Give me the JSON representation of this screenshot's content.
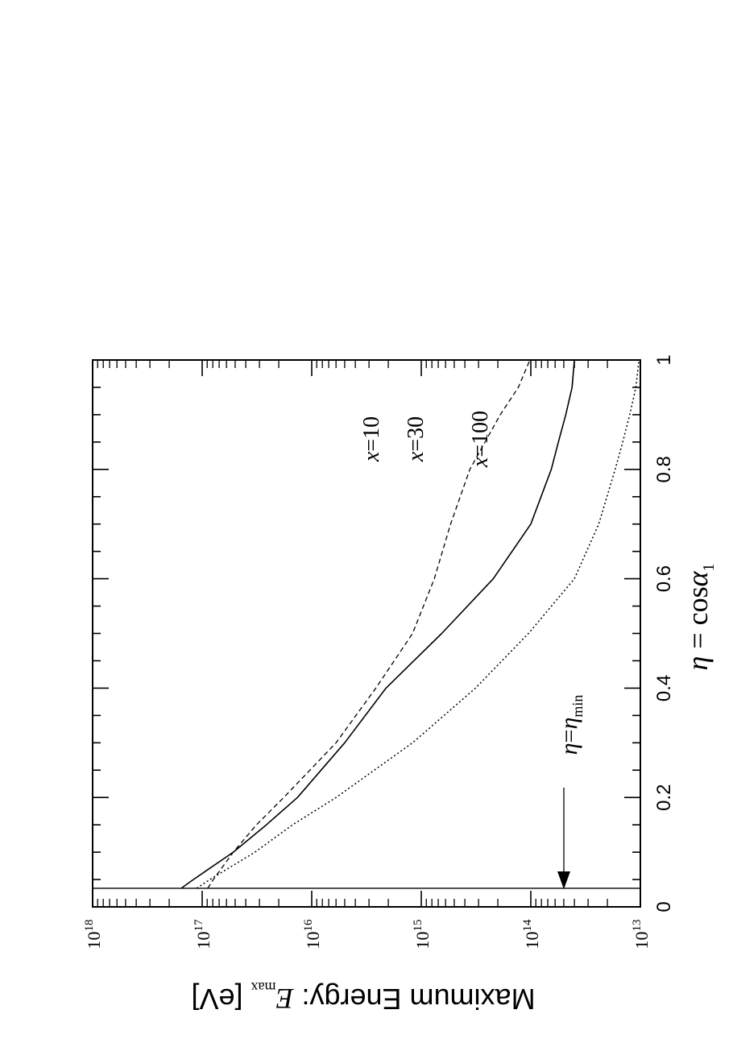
{
  "chart_data": {
    "type": "line",
    "orientation": "rotated-90",
    "xlabel": {
      "symbol": "η",
      "eq": " = cos",
      "alpha": "α",
      "sub": "1"
    },
    "ylabel": {
      "text": "Maximum Energy: ",
      "E": "E",
      "sub": "max",
      "unit": " [eV]"
    },
    "xlim": [
      0,
      1
    ],
    "ylim_log10": [
      13,
      18
    ],
    "y_scale": "log",
    "x_ticks": [
      "0",
      "0.2",
      "0.4",
      "0.6",
      "0.8",
      "1"
    ],
    "y_ticks": [
      {
        "base": "10",
        "exp": "13"
      },
      {
        "base": "10",
        "exp": "14"
      },
      {
        "base": "10",
        "exp": "15"
      },
      {
        "base": "10",
        "exp": "16"
      },
      {
        "base": "10",
        "exp": "17"
      },
      {
        "base": "10",
        "exp": "18"
      }
    ],
    "eta_min": 0.034,
    "eta_min_label": {
      "eta": "η",
      "eq": "=",
      "eta2": "η",
      "sub": "min"
    },
    "series": [
      {
        "name": "x=10",
        "label_x": "x",
        "label_rest": "=10",
        "style": "dashed",
        "x": [
          0.034,
          0.05,
          0.1,
          0.15,
          0.2,
          0.3,
          0.4,
          0.5,
          0.6,
          0.7,
          0.8,
          0.9,
          0.95,
          1.0
        ],
        "y": [
          8.9e+16,
          7.9e+16,
          5.2e+16,
          3.2e+16,
          1.8e+16,
          6000000000000000.0,
          2600000000000000.0,
          1200000000000000.0,
          760000000000000.0,
          540000000000000.0,
          360000000000000.0,
          190000000000000.0,
          130000000000000.0,
          102000000000000.0
        ]
      },
      {
        "name": "x=30",
        "label_x": "x",
        "label_rest": "=30",
        "style": "solid",
        "x": [
          0.034,
          0.05,
          0.1,
          0.15,
          0.2,
          0.3,
          0.4,
          0.5,
          0.6,
          0.7,
          0.8,
          0.85,
          0.9,
          0.95,
          1.0
        ],
        "y": [
          1.55e+17,
          1.2e+17,
          5.2e+16,
          2.6e+16,
          1.35e+16,
          5000000000000000.0,
          2100000000000000.0,
          650000000000000.0,
          220000000000000.0,
          100000000000000.0,
          65000000000000.0,
          56000000000000.0,
          48000000000000.0,
          42000000000000.0,
          40000000000000.0
        ]
      },
      {
        "name": "x=100",
        "label_x": "x",
        "label_rest": "=100",
        "style": "dotted",
        "x": [
          0.034,
          0.05,
          0.1,
          0.15,
          0.2,
          0.3,
          0.4,
          0.5,
          0.6,
          0.7,
          0.8,
          0.85,
          0.9,
          0.95,
          1.0
        ],
        "y": [
          1.12e+17,
          8.5e+16,
          3.3e+16,
          1.5e+16,
          6000000000000000.0,
          1200000000000000.0,
          320000000000000.0,
          105000000000000.0,
          40000000000000.0,
          24000000000000.0,
          17000000000000.0,
          14500000000000.0,
          12500000000000.0,
          11000000000000.0,
          10300000000000.0
        ]
      }
    ]
  }
}
